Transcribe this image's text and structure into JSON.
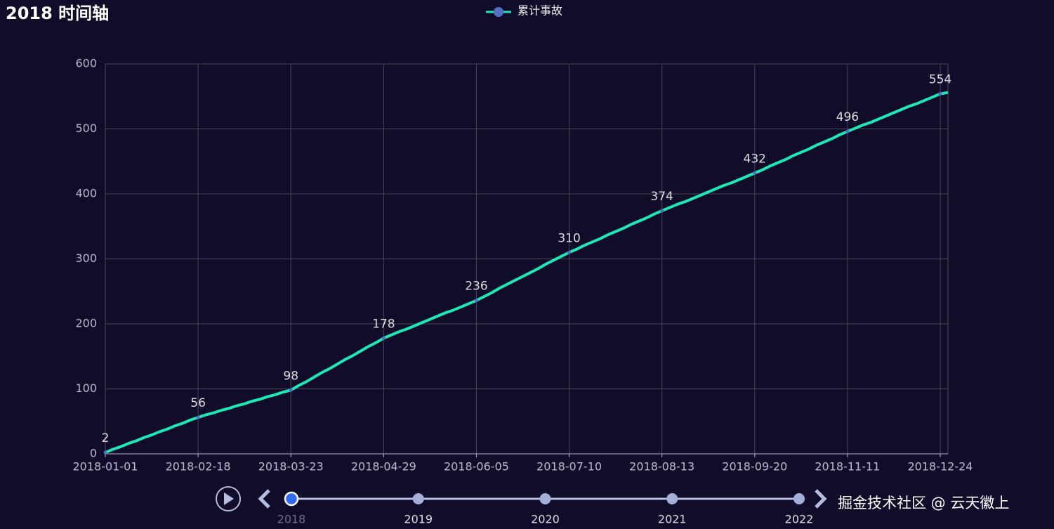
{
  "chart_data": {
    "type": "line",
    "title": "2018 时间轴",
    "categories": [
      "2018-01-01",
      null,
      null,
      null,
      null,
      null,
      null,
      null,
      null,
      null,
      null,
      null,
      "2018-02-18",
      null,
      null,
      null,
      null,
      null,
      null,
      null,
      null,
      null,
      null,
      null,
      "2018-03-23",
      null,
      null,
      null,
      null,
      null,
      null,
      null,
      null,
      null,
      null,
      null,
      "2018-04-29",
      null,
      null,
      null,
      null,
      null,
      null,
      null,
      null,
      null,
      null,
      null,
      "2018-06-05",
      null,
      null,
      null,
      null,
      null,
      null,
      null,
      null,
      null,
      null,
      null,
      "2018-07-10",
      null,
      null,
      null,
      null,
      null,
      null,
      null,
      null,
      null,
      null,
      null,
      "2018-08-13",
      null,
      null,
      null,
      null,
      null,
      null,
      null,
      null,
      null,
      null,
      null,
      "2018-09-20",
      null,
      null,
      null,
      null,
      null,
      null,
      null,
      null,
      null,
      null,
      null,
      "2018-11-11",
      null,
      null,
      null,
      null,
      null,
      null,
      null,
      null,
      null,
      null,
      null,
      "2018-12-24",
      null
    ],
    "series": [
      {
        "name": "累计事故",
        "color": "#1de9b6",
        "marker_color": "#5470c6",
        "values": [
          2,
          7,
          11,
          16,
          20,
          25,
          29,
          34,
          38,
          43,
          47,
          52,
          56,
          60,
          63,
          67,
          70,
          74,
          77,
          81,
          84,
          88,
          91,
          95,
          98,
          105,
          111,
          118,
          125,
          131,
          138,
          145,
          151,
          158,
          165,
          171,
          178,
          183,
          188,
          192,
          197,
          202,
          207,
          212,
          217,
          221,
          226,
          231,
          236,
          242,
          248,
          255,
          261,
          267,
          273,
          279,
          285,
          292,
          298,
          304,
          310,
          315,
          321,
          326,
          331,
          337,
          342,
          347,
          353,
          358,
          363,
          369,
          374,
          379,
          384,
          388,
          393,
          398,
          403,
          408,
          413,
          417,
          422,
          427,
          432,
          437,
          443,
          448,
          453,
          459,
          464,
          469,
          475,
          480,
          485,
          491,
          496,
          501,
          506,
          510,
          515,
          520,
          525,
          530,
          535,
          539,
          544,
          549,
          554,
          556
        ]
      }
    ],
    "ylim": [
      0,
      600
    ],
    "yticks": [
      0,
      100,
      200,
      300,
      400,
      500,
      600
    ],
    "grid": true
  },
  "timeline": {
    "labels": [
      "2018",
      "2019",
      "2020",
      "2021",
      "2022"
    ],
    "current": 0
  },
  "watermark": "掘金技术社区 @ 云天徽上"
}
